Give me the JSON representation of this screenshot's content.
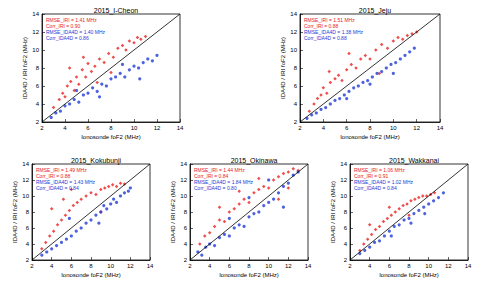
{
  "chart_data": [
    {
      "type": "scatter",
      "title": "2015_I-Cheon",
      "x_label": "Ionosonde foF2 (MHz)",
      "y_label": "IDA4D / IRI foF2 (MHz)",
      "xlim": [
        2,
        14
      ],
      "ylim": [
        2,
        14
      ],
      "xticks": [
        2,
        4,
        6,
        8,
        10,
        12,
        14
      ],
      "yticks": [
        2,
        4,
        6,
        8,
        10,
        12,
        14
      ],
      "annotations": [
        {
          "text": "RMSE_IRI = 1.41 MHz",
          "color": "#e8221f"
        },
        {
          "text": "Corr_IRI = 0.90",
          "color": "#e8221f"
        },
        {
          "text": "RMSE_IDA4D = 1.40 MHz",
          "color": "#1f3bd6"
        },
        {
          "text": "Corr_IDA4D = 0.86",
          "color": "#1f3bd6"
        }
      ],
      "series": [
        {
          "color": "#e8221f",
          "marker": "diamond",
          "x": [
            3.0,
            3.5,
            3.8,
            4.0,
            4.2,
            4.5,
            4.8,
            5.0,
            5.2,
            5.5,
            5.8,
            6.0,
            6.3,
            6.6,
            7.0,
            7.4,
            7.8,
            8.2,
            8.6,
            9.0,
            9.3,
            9.6,
            10.0,
            10.3,
            10.6,
            11.0,
            4.4,
            5.6,
            6.8,
            8.0
          ],
          "values": [
            3.6,
            4.5,
            5.2,
            4.8,
            6.0,
            6.5,
            5.5,
            7.0,
            6.2,
            7.8,
            7.0,
            8.5,
            7.6,
            8.2,
            9.0,
            8.6,
            9.6,
            9.2,
            10.2,
            10.5,
            10.0,
            11.0,
            10.8,
            11.4,
            11.2,
            11.5,
            8.0,
            9.2,
            6.4,
            7.5
          ]
        },
        {
          "color": "#1f3bd6",
          "marker": "circle",
          "x": [
            2.8,
            3.2,
            3.6,
            4.0,
            4.4,
            4.8,
            5.2,
            5.6,
            6.0,
            6.4,
            6.8,
            7.2,
            7.6,
            8.0,
            8.4,
            8.8,
            9.2,
            9.6,
            10.0,
            10.4,
            10.8,
            11.2,
            11.6,
            12.0,
            5.0,
            7.0,
            9.0,
            10.5
          ],
          "values": [
            2.5,
            3.0,
            3.2,
            3.8,
            4.0,
            4.5,
            4.2,
            5.0,
            5.2,
            5.8,
            5.4,
            6.2,
            6.0,
            6.8,
            7.0,
            7.4,
            7.0,
            7.8,
            8.2,
            8.0,
            8.6,
            9.0,
            8.8,
            9.4,
            5.5,
            4.8,
            8.4,
            6.8
          ]
        },
        {
          "type": "line",
          "line_style": "solid",
          "color": "#000000",
          "x": [
            2,
            14
          ],
          "values": [
            2,
            14
          ]
        }
      ]
    },
    {
      "type": "scatter",
      "title": "2015_Jeju",
      "x_label": "Ionosonde foF2 (MHz)",
      "y_label": "IDA4D / IRI foF2 (MHz)",
      "xlim": [
        2,
        14
      ],
      "ylim": [
        2,
        14
      ],
      "xticks": [
        2,
        4,
        6,
        8,
        10,
        12,
        14
      ],
      "yticks": [
        2,
        4,
        6,
        8,
        10,
        12,
        14
      ],
      "annotations": [
        {
          "text": "RMSE_IRI = 1.51 MHz",
          "color": "#e8221f"
        },
        {
          "text": "Corr_IRI = 0.88",
          "color": "#e8221f"
        },
        {
          "text": "RMSE_IDA4D = 1.38 MHz",
          "color": "#1f3bd6"
        },
        {
          "text": "Corr_IDA4D = 0.88",
          "color": "#1f3bd6"
        }
      ],
      "series": [
        {
          "color": "#e8221f",
          "marker": "diamond",
          "x": [
            2.8,
            3.2,
            3.5,
            3.8,
            4.0,
            4.3,
            4.6,
            5.0,
            5.3,
            5.6,
            6.0,
            6.4,
            6.8,
            7.2,
            7.6,
            8.0,
            8.5,
            9.0,
            9.5,
            10.0,
            10.4,
            10.8,
            11.2,
            11.6,
            12.0,
            4.5,
            6.2,
            8.8
          ],
          "values": [
            3.2,
            4.0,
            4.6,
            5.0,
            5.8,
            5.2,
            6.4,
            6.8,
            7.2,
            6.6,
            7.8,
            8.4,
            8.0,
            9.0,
            9.4,
            9.0,
            10.0,
            10.6,
            10.2,
            11.0,
            11.4,
            11.2,
            11.6,
            11.8,
            12.0,
            7.6,
            9.6,
            7.4
          ]
        },
        {
          "color": "#1f3bd6",
          "marker": "circle",
          "x": [
            2.6,
            3.0,
            3.4,
            3.8,
            4.2,
            4.6,
            5.0,
            5.4,
            5.8,
            6.2,
            6.6,
            7.0,
            7.4,
            7.8,
            8.2,
            8.6,
            9.0,
            9.4,
            9.8,
            10.2,
            10.6,
            11.0,
            11.4,
            11.8,
            6.0,
            8.0,
            10.0
          ],
          "values": [
            2.4,
            2.8,
            3.0,
            3.4,
            3.6,
            4.0,
            4.4,
            4.6,
            5.0,
            5.4,
            5.8,
            6.0,
            6.4,
            6.6,
            7.0,
            7.4,
            7.6,
            8.0,
            8.4,
            8.6,
            9.0,
            9.4,
            9.8,
            10.2,
            4.6,
            6.2,
            7.4
          ]
        },
        {
          "type": "line",
          "line_style": "solid",
          "color": "#000000",
          "x": [
            2,
            14
          ],
          "values": [
            2,
            14
          ]
        }
      ]
    },
    {
      "type": "scatter",
      "title": "2015_Kokubunji",
      "x_label": "Ionosonde foF2 (MHz)",
      "y_label": "IDA4D / IRI foF2 (MHz)",
      "xlim": [
        2,
        14
      ],
      "ylim": [
        2,
        14
      ],
      "xticks": [
        2,
        4,
        6,
        8,
        10,
        12,
        14
      ],
      "yticks": [
        2,
        4,
        6,
        8,
        10,
        12,
        14
      ],
      "annotations": [
        {
          "text": "RMSE_IRI = 1.49 MHz",
          "color": "#e8221f"
        },
        {
          "text": "Corr_IRI = 0.88",
          "color": "#e8221f"
        },
        {
          "text": "RMSE_IDA4D = 1.43 MHz",
          "color": "#1f3bd6"
        },
        {
          "text": "Corr_IDA4D = 0.84",
          "color": "#1f3bd6"
        }
      ],
      "series": [
        {
          "color": "#e8221f",
          "marker": "diamond",
          "x": [
            3.0,
            3.4,
            3.8,
            4.2,
            4.6,
            5.0,
            5.4,
            5.8,
            6.2,
            6.6,
            7.0,
            7.5,
            8.0,
            8.5,
            9.0,
            9.4,
            9.8,
            10.2,
            10.6,
            11.0,
            11.4,
            4.0,
            5.2,
            6.0,
            9.0
          ],
          "values": [
            3.4,
            4.2,
            5.0,
            5.6,
            6.4,
            7.0,
            7.6,
            8.2,
            8.8,
            9.2,
            9.6,
            10.0,
            10.4,
            10.2,
            10.8,
            11.0,
            11.2,
            11.4,
            11.2,
            11.6,
            11.5,
            8.4,
            9.6,
            10.8,
            8.0
          ]
        },
        {
          "color": "#1f3bd6",
          "marker": "circle",
          "x": [
            3.0,
            3.5,
            4.0,
            4.5,
            5.0,
            5.5,
            6.0,
            6.5,
            7.0,
            7.5,
            8.0,
            8.5,
            9.0,
            9.3,
            9.6,
            10.0,
            10.3,
            10.6,
            11.0,
            11.4,
            11.8,
            12.0,
            5.8,
            8.8
          ],
          "values": [
            2.6,
            3.0,
            3.4,
            3.8,
            4.2,
            4.6,
            5.0,
            5.6,
            6.0,
            6.6,
            7.0,
            7.6,
            8.0,
            8.8,
            8.4,
            9.0,
            9.6,
            9.2,
            10.0,
            10.4,
            10.6,
            11.0,
            7.2,
            6.6
          ]
        },
        {
          "type": "line",
          "line_style": "solid",
          "color": "#000000",
          "x": [
            2,
            14
          ],
          "values": [
            2,
            14
          ]
        }
      ]
    },
    {
      "type": "scatter",
      "title": "2015_Okinawa",
      "x_label": "Ionosonde foF2 (MHz)",
      "y_label": "IDA4D / IRI foF2 (MHz)",
      "xlim": [
        2,
        14
      ],
      "ylim": [
        2,
        14
      ],
      "xticks": [
        2,
        4,
        6,
        8,
        10,
        12,
        14
      ],
      "yticks": [
        2,
        4,
        6,
        8,
        10,
        12,
        14
      ],
      "annotations": [
        {
          "text": "RMSE_IRI = 1.44 MHz",
          "color": "#e8221f"
        },
        {
          "text": "Corr_IRI = 0.84",
          "color": "#e8221f"
        },
        {
          "text": "RMSE_IDA4D = 1.84 MHz",
          "color": "#1f3bd6"
        },
        {
          "text": "Corr_IDA4D = 0.80",
          "color": "#1f3bd6"
        }
      ],
      "series": [
        {
          "color": "#e8221f",
          "marker": "diamond",
          "x": [
            3.0,
            3.5,
            4.0,
            4.5,
            5.0,
            5.5,
            6.0,
            6.5,
            7.0,
            7.5,
            8.0,
            8.5,
            9.0,
            9.5,
            10.0,
            10.5,
            11.0,
            11.5,
            12.0,
            12.5,
            13.0,
            5.0,
            7.0,
            9.0,
            11.0,
            12.0
          ],
          "values": [
            4.0,
            5.0,
            5.4,
            6.2,
            7.0,
            6.8,
            8.0,
            8.4,
            9.0,
            9.6,
            9.2,
            10.4,
            10.8,
            11.2,
            11.0,
            12.0,
            12.4,
            12.8,
            13.0,
            13.4,
            13.2,
            8.6,
            10.6,
            12.2,
            9.6,
            11.0
          ]
        },
        {
          "color": "#1f3bd6",
          "marker": "circle",
          "x": [
            2.8,
            3.2,
            3.6,
            4.0,
            4.5,
            5.0,
            5.5,
            6.0,
            6.5,
            7.0,
            7.5,
            8.0,
            8.5,
            9.0,
            9.5,
            10.0,
            10.5,
            11.0,
            11.5,
            12.0,
            12.5,
            13.0,
            6.0,
            8.0,
            10.0,
            11.5
          ],
          "values": [
            3.0,
            2.6,
            3.6,
            4.0,
            3.8,
            4.8,
            5.2,
            5.0,
            6.0,
            6.4,
            6.2,
            7.4,
            7.8,
            8.0,
            8.8,
            9.2,
            9.6,
            10.4,
            11.2,
            11.6,
            12.6,
            13.0,
            7.2,
            9.8,
            12.0,
            8.6
          ]
        },
        {
          "type": "line",
          "line_style": "solid",
          "color": "#000000",
          "x": [
            2,
            14
          ],
          "values": [
            2,
            14
          ]
        }
      ]
    },
    {
      "type": "scatter",
      "title": "2015_Wakkanai",
      "x_label": "Ionosonde foF2 (MHz)",
      "y_label": "IDA4D / IRI foF2 (MHz)",
      "xlim": [
        2,
        14
      ],
      "ylim": [
        2,
        14
      ],
      "xticks": [
        2,
        4,
        6,
        8,
        10,
        12,
        14
      ],
      "yticks": [
        2,
        4,
        6,
        8,
        10,
        12,
        14
      ],
      "annotations": [
        {
          "text": "RMSE_IRI = 1.06 MHz",
          "color": "#e8221f"
        },
        {
          "text": "Corr_IRI = 0.91",
          "color": "#e8221f"
        },
        {
          "text": "RMSE_IDA4D = 1.02 MHz",
          "color": "#1f3bd6"
        },
        {
          "text": "Corr_IDA4D = 0.84",
          "color": "#1f3bd6"
        }
      ],
      "series": [
        {
          "color": "#e8221f",
          "marker": "diamond",
          "x": [
            3.0,
            3.4,
            3.8,
            4.2,
            4.6,
            5.0,
            5.4,
            5.8,
            6.2,
            6.6,
            7.0,
            7.4,
            7.8,
            8.2,
            8.6,
            9.0,
            9.4,
            9.8,
            10.2,
            10.6,
            4.0,
            6.0,
            8.0
          ],
          "values": [
            3.2,
            4.0,
            4.6,
            5.2,
            5.8,
            6.2,
            6.8,
            7.2,
            7.6,
            8.0,
            8.4,
            8.8,
            9.0,
            9.4,
            9.6,
            9.8,
            10.0,
            10.0,
            10.2,
            10.4,
            6.4,
            8.6,
            7.6
          ]
        },
        {
          "color": "#1f3bd6",
          "marker": "circle",
          "x": [
            3.0,
            3.5,
            4.0,
            4.5,
            5.0,
            5.5,
            6.0,
            6.5,
            7.0,
            7.5,
            8.0,
            8.5,
            9.0,
            9.5,
            10.0,
            10.5,
            11.0,
            11.5,
            6.2,
            8.2,
            9.6
          ],
          "values": [
            2.8,
            3.2,
            3.6,
            4.2,
            4.4,
            5.0,
            5.6,
            6.2,
            6.4,
            7.0,
            7.2,
            7.8,
            8.2,
            8.6,
            9.0,
            9.4,
            9.8,
            10.4,
            5.0,
            6.6,
            7.8
          ]
        },
        {
          "type": "line",
          "line_style": "solid",
          "color": "#000000",
          "x": [
            2,
            14
          ],
          "values": [
            2,
            14
          ]
        }
      ]
    }
  ]
}
